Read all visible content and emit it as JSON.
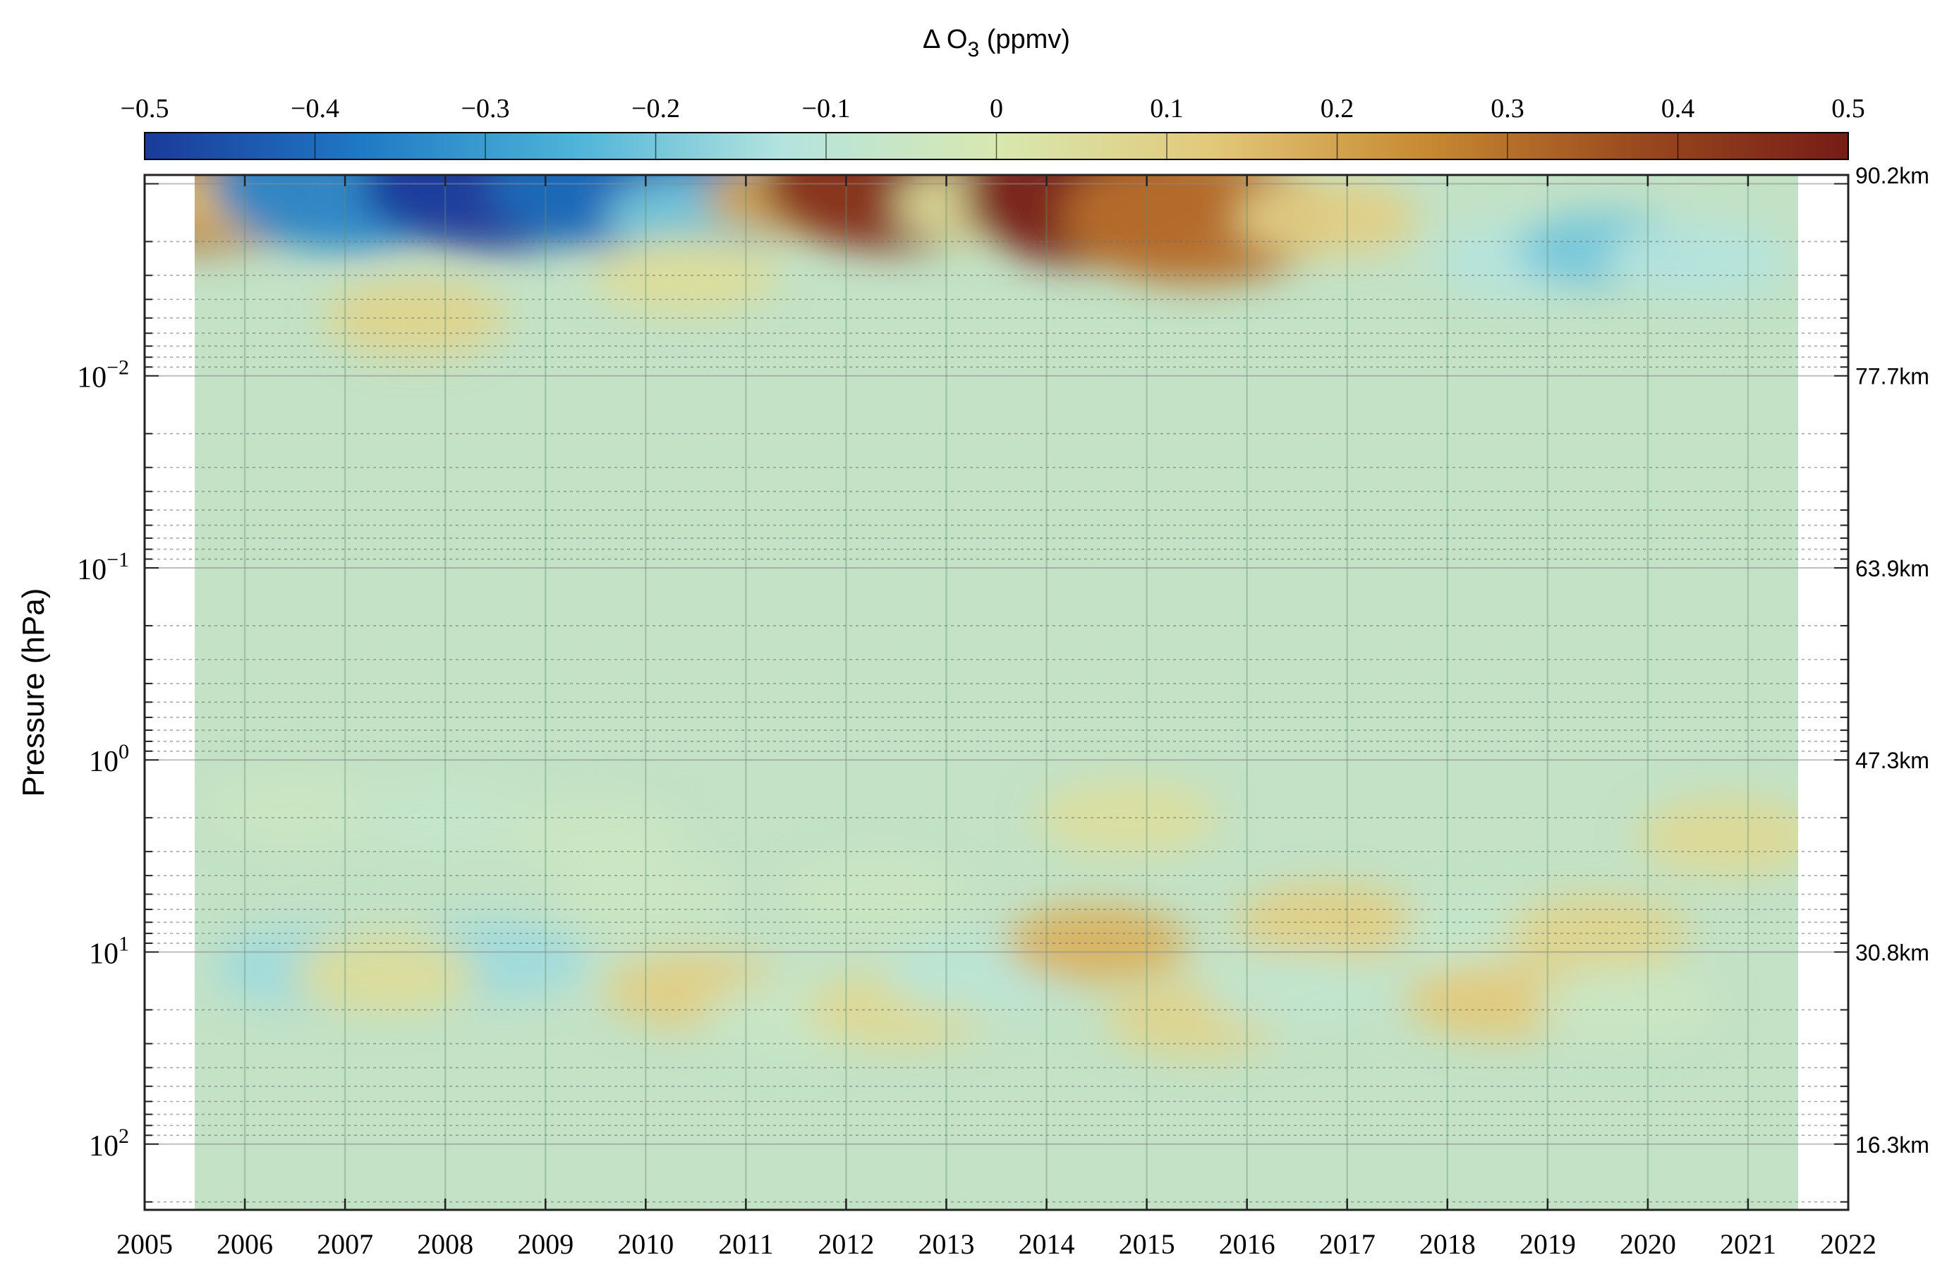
{
  "chart_data": {
    "type": "heatmap",
    "title": "",
    "colorbar": {
      "label": "Δ O",
      "label_subscript": "3",
      "label_suffix": " (ppmv)",
      "range": [
        -0.5,
        0.5
      ],
      "ticks": [
        "−0.5",
        "−0.4",
        "−0.3",
        "−0.2",
        "−0.1",
        "0",
        "0.1",
        "0.2",
        "0.3",
        "0.4",
        "0.5"
      ],
      "colormap": [
        "#1a3a99",
        "#1f78c4",
        "#4cb3d8",
        "#b4e4de",
        "#d8e8b0",
        "#e2c97a",
        "#c88a32",
        "#9a4a1e",
        "#761c17"
      ]
    },
    "x": {
      "label": "",
      "range": [
        2005,
        2022
      ],
      "ticks": [
        "2005",
        "2006",
        "2007",
        "2008",
        "2009",
        "2010",
        "2011",
        "2012",
        "2013",
        "2014",
        "2015",
        "2016",
        "2017",
        "2018",
        "2019",
        "2020",
        "2021",
        "2022"
      ],
      "data_range": [
        2005.5,
        2021.5
      ]
    },
    "y": {
      "label": "Pressure (hPa)",
      "scale": "log",
      "range": [
        0.0009,
        220
      ],
      "reversed": true,
      "ticks": [
        {
          "base": "10",
          "exp": "−2",
          "value": 0.01
        },
        {
          "base": "10",
          "exp": "−1",
          "value": 0.1
        },
        {
          "base": "10",
          "exp": "0",
          "value": 1
        },
        {
          "base": "10",
          "exp": "1",
          "value": 10
        },
        {
          "base": "10",
          "exp": "2",
          "value": 100
        }
      ]
    },
    "y_right": {
      "labels": [
        {
          "text": "90.2km",
          "pressure": 0.0009
        },
        {
          "text": "77.7km",
          "pressure": 0.01
        },
        {
          "text": "63.9km",
          "pressure": 0.1
        },
        {
          "text": "47.3km",
          "pressure": 1
        },
        {
          "text": "30.8km",
          "pressure": 10
        },
        {
          "text": "16.3km",
          "pressure": 100
        }
      ]
    },
    "grid": true,
    "anomalies": [
      {
        "x": 2005.6,
        "p": 0.001,
        "value": 0.35
      },
      {
        "x": 2006.0,
        "p": 0.0012,
        "value": 0.15
      },
      {
        "x": 2007.0,
        "p": 0.001,
        "value": -0.35
      },
      {
        "x": 2008.5,
        "p": 0.001,
        "value": -0.5
      },
      {
        "x": 2009.8,
        "p": 0.001,
        "value": -0.4
      },
      {
        "x": 2010.5,
        "p": 0.0015,
        "value": -0.2
      },
      {
        "x": 2011.5,
        "p": 0.0012,
        "value": 0.2
      },
      {
        "x": 2012.5,
        "p": 0.001,
        "value": 0.45
      },
      {
        "x": 2013.4,
        "p": 0.0013,
        "value": 0.05
      },
      {
        "x": 2014.5,
        "p": 0.0012,
        "value": 0.5
      },
      {
        "x": 2015.5,
        "p": 0.0015,
        "value": 0.3
      },
      {
        "x": 2016.8,
        "p": 0.0015,
        "value": 0.1
      },
      {
        "x": 2018.8,
        "p": 0.0025,
        "value": -0.12
      },
      {
        "x": 2019.6,
        "p": 0.0022,
        "value": -0.2
      },
      {
        "x": 2020.5,
        "p": 0.0025,
        "value": -0.12
      },
      {
        "x": 2007.7,
        "p": 0.005,
        "value": 0.08
      },
      {
        "x": 2010.4,
        "p": 0.003,
        "value": 0.05
      },
      {
        "x": 2006.5,
        "p": 1.8,
        "value": -0.05
      },
      {
        "x": 2008.0,
        "p": 2.0,
        "value": -0.07
      },
      {
        "x": 2009.5,
        "p": 2.5,
        "value": -0.05
      },
      {
        "x": 2014.8,
        "p": 2.0,
        "value": 0.04
      },
      {
        "x": 2020.8,
        "p": 2.5,
        "value": 0.06
      },
      {
        "x": 2006.6,
        "p": 12,
        "value": -0.15
      },
      {
        "x": 2008.5,
        "p": 11,
        "value": -0.15
      },
      {
        "x": 2007.4,
        "p": 13,
        "value": 0.05
      },
      {
        "x": 2010.5,
        "p": 16,
        "value": 0.1
      },
      {
        "x": 2011.5,
        "p": 22,
        "value": -0.06
      },
      {
        "x": 2012.5,
        "p": 20,
        "value": 0.06
      },
      {
        "x": 2013.3,
        "p": 13,
        "value": -0.1
      },
      {
        "x": 2014.5,
        "p": 9,
        "value": 0.17
      },
      {
        "x": 2015.5,
        "p": 22,
        "value": 0.08
      },
      {
        "x": 2016.8,
        "p": 7,
        "value": 0.1
      },
      {
        "x": 2016.5,
        "p": 16,
        "value": -0.08
      },
      {
        "x": 2018.5,
        "p": 8,
        "value": -0.07
      },
      {
        "x": 2018.5,
        "p": 18,
        "value": 0.12
      },
      {
        "x": 2019.5,
        "p": 8,
        "value": 0.08
      },
      {
        "x": 2019.8,
        "p": 19,
        "value": -0.05
      },
      {
        "x": 2012.3,
        "p": 5,
        "value": -0.05
      },
      {
        "x": 2010.0,
        "p": 5,
        "value": -0.05
      }
    ]
  }
}
